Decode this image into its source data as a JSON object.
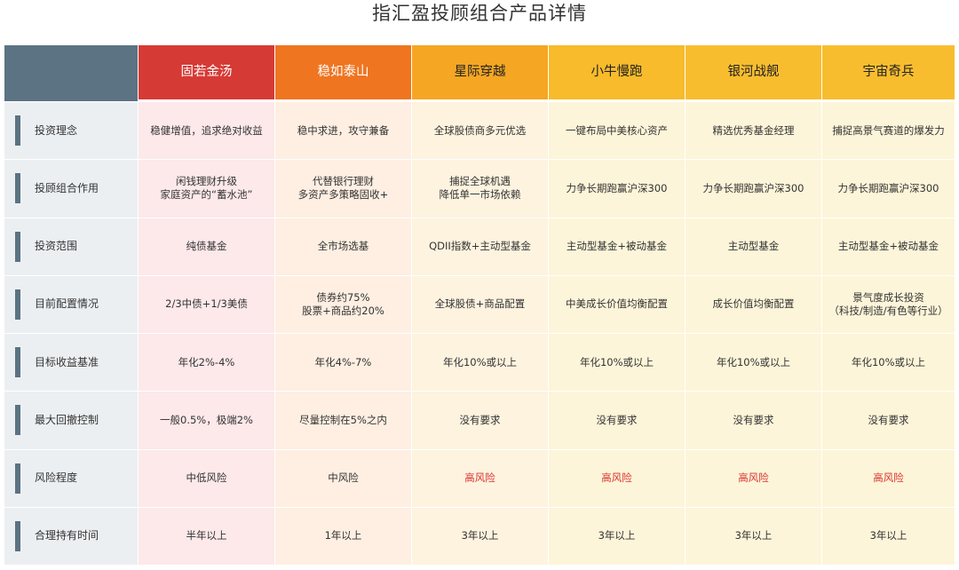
{
  "title": "指汇盈投顾组合产品详情",
  "colors": {
    "label_bg": "#eceff2",
    "label_bar": "#5b7382",
    "risk_high": "#d9302c"
  },
  "products": [
    {
      "name": "固若金汤",
      "header_color": "#d63a35",
      "col_bg": "#fde8ea"
    },
    {
      "name": "稳如泰山",
      "header_color": "#ef7521",
      "col_bg": "#feefe2"
    },
    {
      "name": "星际穿越",
      "header_color": "#f5a623",
      "col_bg": "#fdf3df"
    },
    {
      "name": "小牛慢跑",
      "header_color": "#f7bb2b",
      "col_bg": "#fdf5d9"
    },
    {
      "name": "银河战舰",
      "header_color": "#f8bd2f",
      "col_bg": "#fdf5d9"
    },
    {
      "name": "宇宙奇兵",
      "header_color": "#f8bd2f",
      "col_bg": "#fdf5d9"
    }
  ],
  "rows": [
    {
      "label": "投资理念",
      "values": [
        [
          "稳健增值，追求绝对收益"
        ],
        [
          "稳中求进，攻守兼备"
        ],
        [
          "全球股债商多元优选"
        ],
        [
          "一键布局中美核心资产"
        ],
        [
          "精选优秀基金经理"
        ],
        [
          "捕捉高景气赛道的爆发力"
        ]
      ]
    },
    {
      "label": "投顾组合作用",
      "values": [
        [
          "闲钱理财升级",
          "家庭资产的“蓄水池”"
        ],
        [
          "代替银行理财",
          "多资产多策略固收+"
        ],
        [
          "捕捉全球机遇",
          "降低单一市场依赖"
        ],
        [
          "力争长期跑赢沪深300"
        ],
        [
          "力争长期跑赢沪深300"
        ],
        [
          "力争长期跑赢沪深300"
        ]
      ]
    },
    {
      "label": "投资范围",
      "values": [
        [
          "纯债基金"
        ],
        [
          "全市场选基"
        ],
        [
          "QDII指数+主动型基金"
        ],
        [
          "主动型基金+被动基金"
        ],
        [
          "主动型基金"
        ],
        [
          "主动型基金+被动基金"
        ]
      ]
    },
    {
      "label": "目前配置情况",
      "values": [
        [
          "2/3中债+1/3美债"
        ],
        [
          "债券约75%",
          "股票+商品约20%"
        ],
        [
          "全球股债+商品配置"
        ],
        [
          "中美成长价值均衡配置"
        ],
        [
          "成长价值均衡配置"
        ],
        [
          "景气度成长投资",
          "（科技/制造/有色等行业）"
        ]
      ]
    },
    {
      "label": "目标收益基准",
      "values": [
        [
          "年化2%-4%"
        ],
        [
          "年化4%-7%"
        ],
        [
          "年化10%或以上"
        ],
        [
          "年化10%或以上"
        ],
        [
          "年化10%或以上"
        ],
        [
          "年化10%或以上"
        ]
      ]
    },
    {
      "label": "最大回撤控制",
      "values": [
        [
          "一般0.5%，极端2%"
        ],
        [
          "尽量控制在5%之内"
        ],
        [
          "没有要求"
        ],
        [
          "没有要求"
        ],
        [
          "没有要求"
        ],
        [
          "没有要求"
        ]
      ]
    },
    {
      "label": "风险程度",
      "values": [
        [
          "中低风险"
        ],
        [
          "中风险"
        ],
        [
          "高风险"
        ],
        [
          "高风险"
        ],
        [
          "高风险"
        ],
        [
          "高风险"
        ]
      ],
      "high_risk": [
        false,
        false,
        true,
        true,
        true,
        true
      ]
    },
    {
      "label": "合理持有时间",
      "values": [
        [
          "半年以上"
        ],
        [
          "1年以上"
        ],
        [
          "3年以上"
        ],
        [
          "3年以上"
        ],
        [
          "3年以上"
        ],
        [
          "3年以上"
        ]
      ]
    }
  ]
}
